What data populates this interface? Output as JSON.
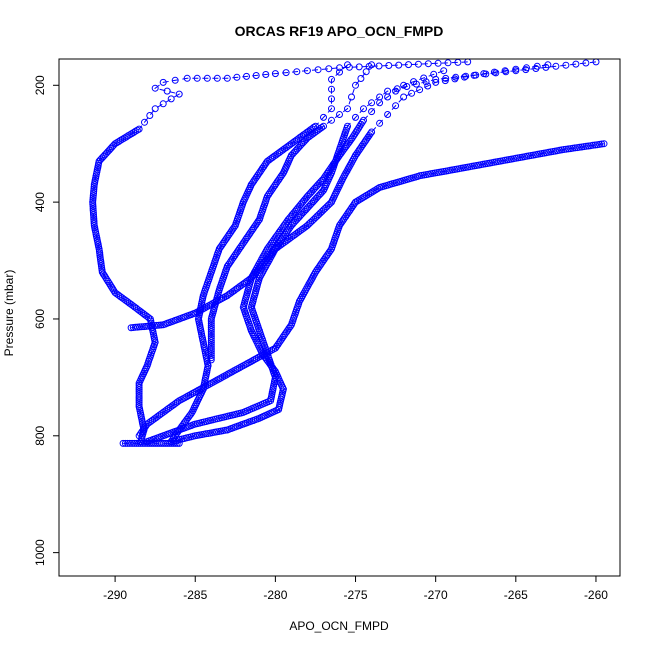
{
  "chart_data": {
    "type": "scatter",
    "title": "ORCAS RF19 APO_OCN_FMPD",
    "xlabel": "APO_OCN_FMPD",
    "ylabel": "Pressure (mbar)",
    "xlim": [
      -293.5,
      -258.5
    ],
    "ylim": [
      1040,
      155
    ],
    "y_reversed": true,
    "grid": false,
    "marker": "open-circle",
    "color": "#0000ff",
    "x_ticks": [
      -290,
      -285,
      -280,
      -275,
      -270,
      -265,
      -260
    ],
    "y_ticks": [
      200,
      400,
      600,
      800,
      1000
    ],
    "series": [
      {
        "points": [
          [
            -268,
            160
          ],
          [
            -276,
            170
          ],
          [
            -280,
            180
          ],
          [
            -283,
            188
          ],
          [
            -285.5,
            188
          ],
          [
            -287,
            195
          ],
          [
            -287.5,
            205
          ],
          [
            -286,
            215
          ],
          [
            -287.5,
            240
          ],
          [
            -288.5,
            275
          ],
          [
            -290,
            300
          ],
          [
            -291,
            330
          ],
          [
            -291.3,
            370
          ],
          [
            -291.4,
            400
          ],
          [
            -291.3,
            440
          ],
          [
            -291,
            480
          ],
          [
            -290.8,
            520
          ],
          [
            -290,
            555
          ],
          [
            -289,
            575
          ],
          [
            -287.8,
            600
          ],
          [
            -287.5,
            640
          ],
          [
            -288,
            680
          ],
          [
            -288.5,
            710
          ],
          [
            -288.5,
            750
          ],
          [
            -288.2,
            790
          ],
          [
            -288.4,
            810
          ]
        ]
      },
      {
        "points": [
          [
            -275.5,
            165
          ],
          [
            -276.5,
            190
          ],
          [
            -276.5,
            240
          ],
          [
            -277.5,
            270
          ],
          [
            -279,
            300
          ],
          [
            -280.5,
            330
          ],
          [
            -281.5,
            370
          ],
          [
            -282,
            400
          ],
          [
            -282.5,
            440
          ],
          [
            -283.5,
            480
          ],
          [
            -284,
            520
          ],
          [
            -284.5,
            560
          ],
          [
            -284.8,
            600
          ],
          [
            -284.5,
            640
          ],
          [
            -284.2,
            680
          ],
          [
            -284.5,
            720
          ],
          [
            -285.2,
            760
          ],
          [
            -286,
            790
          ],
          [
            -286.5,
            810
          ]
        ]
      },
      {
        "points": [
          [
            -274,
            165
          ],
          [
            -275,
            200
          ],
          [
            -275.5,
            240
          ],
          [
            -277,
            270
          ],
          [
            -278,
            290
          ],
          [
            -279,
            320
          ],
          [
            -279.5,
            350
          ],
          [
            -280.5,
            390
          ],
          [
            -281,
            430
          ],
          [
            -282,
            470
          ],
          [
            -283,
            510
          ],
          [
            -283.5,
            550
          ],
          [
            -284,
            600
          ],
          [
            -284,
            670
          ]
        ]
      },
      {
        "points": [
          [
            -260,
            160
          ],
          [
            -265,
            175
          ],
          [
            -270,
            190
          ],
          [
            -273,
            210
          ],
          [
            -274.5,
            240
          ],
          [
            -275.5,
            270
          ],
          [
            -276,
            310
          ],
          [
            -276.5,
            350
          ],
          [
            -277,
            380
          ],
          [
            -278,
            410
          ],
          [
            -279,
            440
          ],
          [
            -280,
            480
          ],
          [
            -281,
            530
          ],
          [
            -281.5,
            580
          ],
          [
            -281,
            620
          ],
          [
            -280.5,
            660
          ],
          [
            -280,
            700
          ],
          [
            -280.3,
            740
          ],
          [
            -282,
            760
          ],
          [
            -285,
            780
          ],
          [
            -287,
            800
          ],
          [
            -288,
            810
          ]
        ]
      },
      {
        "points": [
          [
            -259.5,
            300
          ],
          [
            -262,
            310
          ],
          [
            -265,
            325
          ],
          [
            -268,
            340
          ],
          [
            -271,
            355
          ],
          [
            -273.5,
            375
          ],
          [
            -275,
            400
          ],
          [
            -276,
            440
          ],
          [
            -276.5,
            480
          ],
          [
            -277.5,
            520
          ],
          [
            -278.5,
            570
          ],
          [
            -279,
            610
          ],
          [
            -280,
            650
          ],
          [
            -282,
            680
          ],
          [
            -284,
            710
          ],
          [
            -286,
            740
          ],
          [
            -288,
            780
          ],
          [
            -288.5,
            800
          ]
        ]
      },
      {
        "points": [
          [
            -263,
            165
          ],
          [
            -267,
            180
          ],
          [
            -270,
            195
          ],
          [
            -272,
            220
          ],
          [
            -273,
            250
          ],
          [
            -274,
            280
          ],
          [
            -275,
            320
          ],
          [
            -275.8,
            360
          ],
          [
            -276.5,
            400
          ],
          [
            -278,
            440
          ],
          [
            -280,
            480
          ],
          [
            -281.5,
            530
          ],
          [
            -282,
            580
          ],
          [
            -281.5,
            620
          ],
          [
            -280.8,
            660
          ],
          [
            -280,
            690
          ],
          [
            -279.5,
            720
          ],
          [
            -279.8,
            755
          ],
          [
            -281,
            770
          ],
          [
            -283,
            790
          ],
          [
            -285,
            800
          ],
          [
            -286.5,
            810
          ]
        ]
      },
      {
        "points": [
          [
            -269.5,
            175
          ],
          [
            -272,
            200
          ],
          [
            -273.5,
            230
          ],
          [
            -274.5,
            260
          ],
          [
            -275.2,
            290
          ],
          [
            -276,
            320
          ],
          [
            -277,
            360
          ],
          [
            -278,
            390
          ],
          [
            -279.2,
            430
          ],
          [
            -280.5,
            480
          ],
          [
            -281.5,
            530
          ],
          [
            -283,
            560
          ],
          [
            -285,
            590
          ],
          [
            -287,
            610
          ],
          [
            -289,
            615
          ]
        ]
      },
      {
        "points": [
          [
            -289.5,
            813
          ],
          [
            -288.8,
            813
          ],
          [
            -288,
            813
          ],
          [
            -287.5,
            813
          ],
          [
            -287,
            813
          ],
          [
            -286.5,
            813
          ],
          [
            -286,
            813
          ]
        ]
      }
    ]
  }
}
